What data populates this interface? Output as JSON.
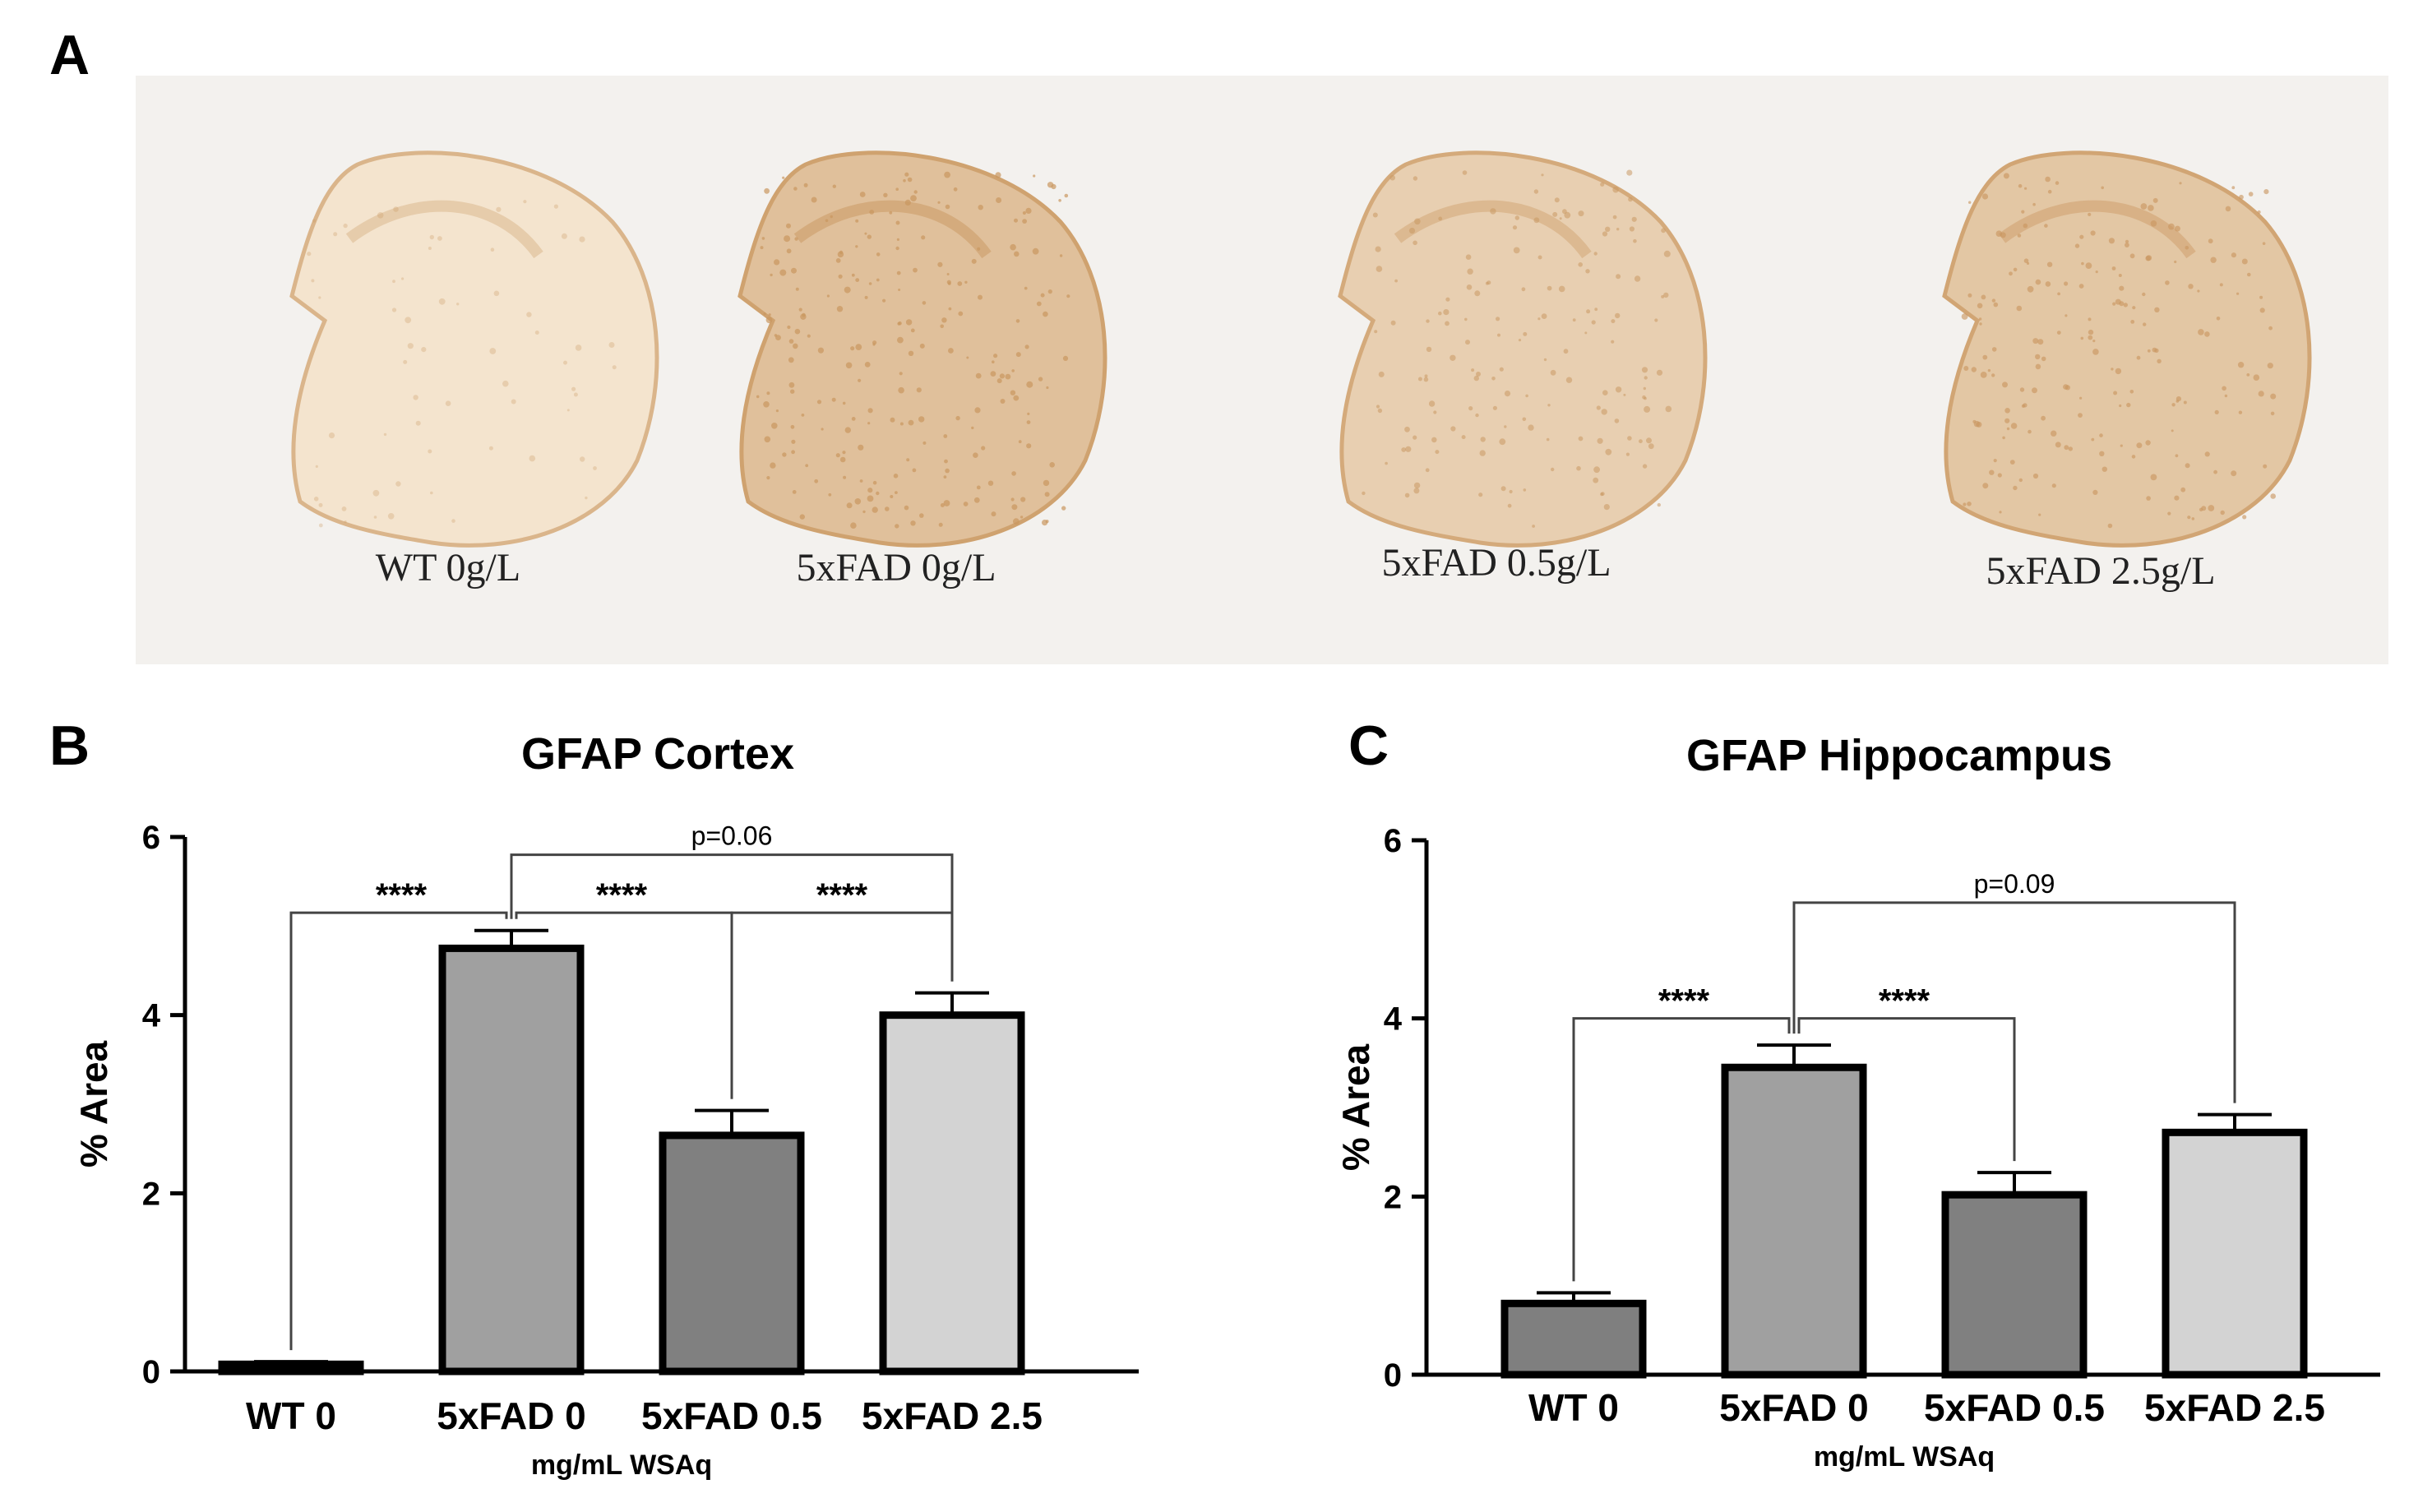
{
  "panels": {
    "a": {
      "letter": "A",
      "colors": {
        "background": "#f3f1ee",
        "stain_light": "#f6e8d4",
        "stain_dark": "#c99760"
      }
    },
    "b": {
      "letter": "B"
    },
    "c": {
      "letter": "C"
    }
  },
  "sections": [
    {
      "label": "WT 0g/L",
      "intensity": 0.1
    },
    {
      "label": "5xFAD 0g/L",
      "intensity": 0.9
    },
    {
      "label": "5xFAD 0.5g/L",
      "intensity": 0.55
    },
    {
      "label": "5xFAD 2.5g/L",
      "intensity": 0.75
    }
  ],
  "chart_data": [
    {
      "type": "bar",
      "title": "GFAP Cortex",
      "ylabel": "% Area",
      "xlabel": "mg/mL WSAq",
      "categories": [
        "WT 0",
        "5xFAD 0",
        "5xFAD 0.5",
        "5xFAD 2.5"
      ],
      "values": [
        0.08,
        4.75,
        2.65,
        4.0
      ],
      "errors": [
        0.03,
        0.2,
        0.28,
        0.25
      ],
      "colors": [
        "#7f7f7f",
        "#a0a0a0",
        "#808080",
        "#d3d3d3"
      ],
      "ylim": [
        0,
        6
      ],
      "yticks": [
        "0",
        "2",
        "4",
        "6"
      ],
      "comparisons": [
        {
          "from": 0,
          "to": 1,
          "label": "****",
          "level": 5.15
        },
        {
          "from": 1,
          "to": 2,
          "label": "****",
          "level": 5.15
        },
        {
          "from": 2,
          "to": 3,
          "label": "****",
          "level": 5.15
        },
        {
          "from": 1,
          "to": 3,
          "label": "p=0.06",
          "level": 5.8
        }
      ]
    },
    {
      "type": "bar",
      "title": "GFAP Hippocampus",
      "ylabel": "% Area",
      "xlabel": "mg/mL WSAq",
      "categories": [
        "WT 0",
        "5xFAD 0",
        "5xFAD 0.5",
        "5xFAD 2.5"
      ],
      "values": [
        0.8,
        3.45,
        2.02,
        2.72
      ],
      "errors": [
        0.12,
        0.25,
        0.25,
        0.2
      ],
      "colors": [
        "#7f7f7f",
        "#a0a0a0",
        "#808080",
        "#d3d3d3"
      ],
      "ylim": [
        0,
        6
      ],
      "yticks": [
        "0",
        "2",
        "4",
        "6"
      ],
      "comparisons": [
        {
          "from": 0,
          "to": 1,
          "label": "****",
          "level": 4.0
        },
        {
          "from": 1,
          "to": 2,
          "label": "****",
          "level": 4.0
        },
        {
          "from": 1,
          "to": 3,
          "label": "p=0.09",
          "level": 5.3
        }
      ]
    }
  ]
}
